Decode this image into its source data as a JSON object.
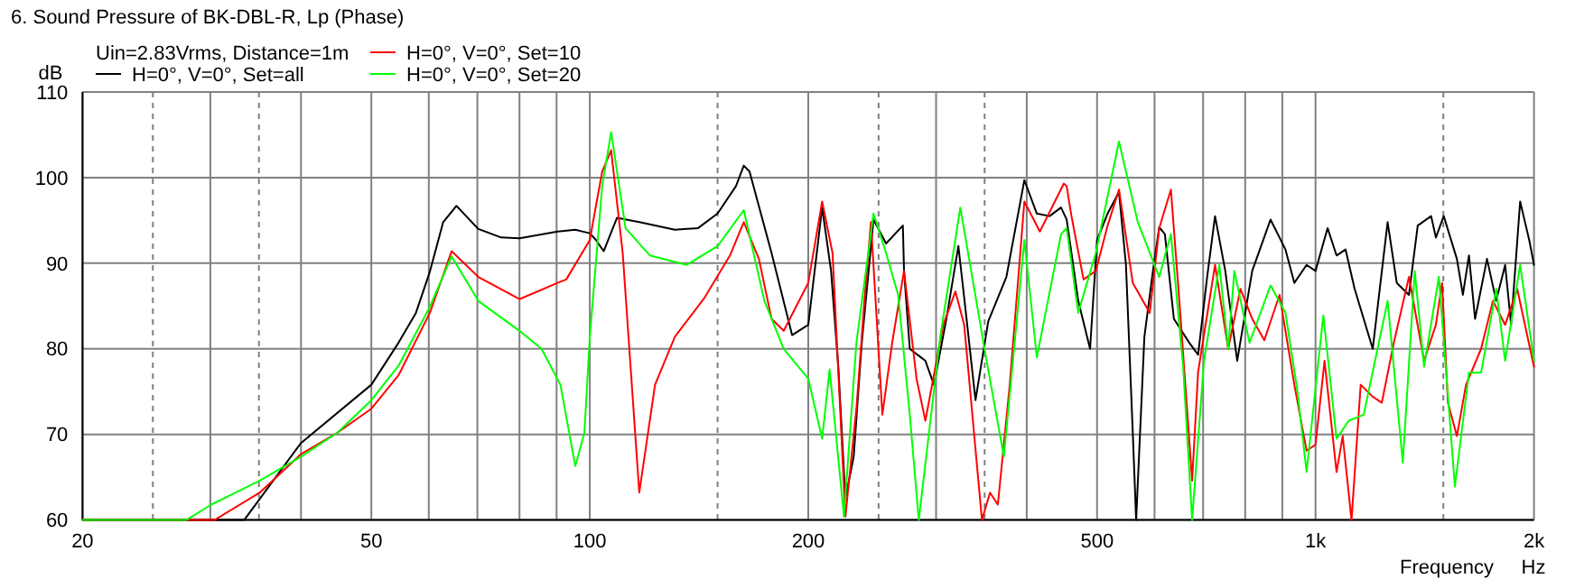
{
  "chart_data": {
    "type": "line",
    "title": "6. Sound Pressure of BK-DBL-R, Lp (Phase)",
    "subtitle": "Uin=2.83Vrms, Distance=1m",
    "xlabel": "Frequency",
    "ylabel": "dB",
    "annotations": [
      "Hz"
    ],
    "log": "x",
    "xlim": [
      20,
      2000
    ],
    "ylim": [
      60,
      110
    ],
    "xticks": [
      20,
      {
        "value": 30,
        "label": null
      },
      {
        "value": 40,
        "label": null
      },
      50,
      {
        "value": 60,
        "label": null
      },
      {
        "value": 70,
        "label": null
      },
      {
        "value": 80,
        "label": null
      },
      {
        "value": 90,
        "label": null
      },
      100,
      200,
      {
        "value": 300,
        "label": null
      },
      {
        "value": 400,
        "label": null
      },
      500,
      {
        "value": 600,
        "label": null
      },
      {
        "value": 700,
        "label": null
      },
      {
        "value": 800,
        "label": null
      },
      {
        "value": 900,
        "label": null
      },
      {
        "value": 1000,
        "label": "1k"
      },
      {
        "value": 2000,
        "label": "2k"
      }
    ],
    "yticks": [
      60,
      70,
      80,
      90,
      100,
      110
    ],
    "grid": true,
    "legend": "top",
    "line_style": "solid",
    "marker": "none",
    "ref_lines": [
      {
        "axis": "x",
        "value": 25,
        "color": "#808080",
        "line_style": "dashed"
      },
      {
        "axis": "x",
        "value": 35,
        "color": "#808080",
        "line_style": "dashed"
      },
      {
        "axis": "x",
        "value": 150,
        "color": "#808080",
        "line_style": "dashed"
      },
      {
        "axis": "x",
        "value": 250,
        "color": "#808080",
        "line_style": "dashed"
      },
      {
        "axis": "x",
        "value": 350,
        "color": "#808080",
        "line_style": "dashed"
      },
      {
        "axis": "x",
        "value": 1500,
        "color": "#808080",
        "line_style": "dashed"
      }
    ],
    "series": [
      {
        "name": "H=0°, V=0°, Set=all",
        "color": "#000000",
        "x": [
          20,
          33.4,
          40,
          50,
          54.5,
          57.6,
          60.2,
          62.8,
          65.5,
          70.2,
          75.5,
          80,
          90.3,
          95.5,
          100,
          102,
          104.5,
          109,
          117,
          131,
          141,
          150,
          159,
          163,
          166,
          178,
          190,
          200,
          209,
          215,
          220,
          225,
          231,
          237,
          246,
          256,
          270,
          271,
          276,
          290,
          298,
          310,
          322,
          328,
          340,
          354,
          375,
          397,
          413,
          430,
          446,
          454,
          461,
          471,
          489,
          500,
          517,
          536,
          548,
          560,
          566,
          581,
          597,
          609,
          620,
          638,
          670,
          689,
          709,
          727,
          751,
          780,
          818,
          867,
          909,
          935,
          972,
          1000,
          1039,
          1069,
          1100,
          1132,
          1199,
          1257,
          1294,
          1345,
          1383,
          1443,
          1465,
          1502,
          1566,
          1596,
          1627,
          1659,
          1723,
          1774,
          1825,
          1860,
          1914,
          1970,
          2000
        ],
        "values": [
          60,
          60,
          69,
          75.8,
          80.7,
          84.2,
          89,
          94.8,
          96.7,
          94,
          93,
          92.9,
          93.7,
          93.9,
          93.5,
          92.7,
          91.4,
          95.3,
          94.8,
          93.9,
          94.1,
          95.8,
          99,
          101.4,
          100.7,
          91.2,
          81.6,
          82.8,
          96.5,
          89.1,
          77.9,
          62.5,
          67.4,
          80.7,
          95.1,
          92.3,
          94.4,
          89.1,
          80,
          78.6,
          75.8,
          83.5,
          92,
          86,
          74,
          83.2,
          88.4,
          99.7,
          95.8,
          95.5,
          96.5,
          95.1,
          91.2,
          85.6,
          80,
          92.7,
          95.8,
          98.3,
          89.8,
          70.2,
          60,
          81.4,
          89.1,
          94.2,
          93.4,
          83.5,
          80.7,
          79.3,
          88.4,
          95.5,
          89.1,
          78.6,
          89.1,
          95.1,
          91.6,
          87.7,
          89.8,
          89.1,
          94.1,
          90.9,
          91.6,
          87,
          80,
          94.8,
          87.7,
          86.3,
          94.4,
          95.5,
          93,
          95.5,
          90.5,
          86.3,
          90.9,
          83.5,
          90.5,
          85.6,
          89.8,
          82.8,
          97.2,
          92.7,
          89.8
        ]
      },
      {
        "name": "H=0°, V=0°, Set=10",
        "color": "#ff0000",
        "x": [
          20,
          30.4,
          35.1,
          40,
          44.9,
          50,
          54.5,
          60.2,
          64.5,
          70.2,
          80,
          90.3,
          92.8,
          100,
          104,
          107,
          111,
          117,
          123,
          131,
          144,
          156,
          163,
          171,
          178,
          185,
          200,
          209,
          216,
          225,
          233,
          239,
          244,
          253,
          261,
          271,
          282,
          290,
          307,
          319,
          328,
          347,
          356,
          365,
          379,
          397,
          417,
          450,
          454,
          461,
          479,
          498,
          517,
          536,
          560,
          591,
          609,
          632,
          651,
          676,
          689,
          727,
          758,
          788,
          818,
          850,
          892,
          935,
          972,
          1000,
          1029,
          1069,
          1090,
          1121,
          1154,
          1199,
          1234,
          1282,
          1345,
          1411,
          1465,
          1494,
          1522,
          1566,
          1612,
          1691,
          1756,
          1825,
          1896,
          2000
        ],
        "values": [
          60,
          60,
          63.2,
          67.7,
          70.2,
          73,
          76.9,
          84.2,
          91.4,
          88.4,
          85.8,
          87.7,
          88.1,
          92.7,
          100.7,
          103.2,
          91.2,
          63.2,
          75.8,
          81.4,
          86,
          90.9,
          94.8,
          90.5,
          83.5,
          82.1,
          87.7,
          97.2,
          91.2,
          60.4,
          73,
          85.6,
          94.8,
          72.3,
          80.7,
          89.1,
          76.5,
          71.6,
          82.8,
          86.7,
          82.8,
          60,
          63.2,
          61.8,
          75.8,
          97.2,
          93.7,
          99.3,
          99,
          95.5,
          88.1,
          89.1,
          94.4,
          98.6,
          87.7,
          84.2,
          94.1,
          98.6,
          84.2,
          64.6,
          77.3,
          89.8,
          80,
          87,
          83.5,
          81,
          86.3,
          75.8,
          68.1,
          68.8,
          78.6,
          65.6,
          69.8,
          60,
          75.8,
          74.4,
          73.7,
          80.7,
          88.4,
          78.6,
          82.8,
          87.7,
          73.7,
          69.8,
          75.8,
          80,
          85.6,
          82.8,
          87,
          77.9
        ]
      },
      {
        "name": "H=0°, V=0°, Set=20",
        "color": "#00ff00",
        "x": [
          20,
          27.8,
          30.1,
          35.1,
          40,
          44.9,
          50,
          54.5,
          60.2,
          64.5,
          70.2,
          80,
          85.8,
          91.1,
          95.5,
          98.3,
          100,
          104,
          107,
          112,
          121,
          136,
          150,
          163,
          174,
          185,
          200,
          209,
          214,
          224,
          233,
          246,
          256,
          266,
          276,
          284,
          304,
          324,
          351,
          372,
          397,
          413,
          446,
          454,
          471,
          498,
          536,
          569,
          609,
          632,
          657,
          676,
          702,
          737,
          758,
          773,
          811,
          867,
          909,
          944,
          972,
          1025,
          1069,
          1111,
          1165,
          1257,
          1319,
          1370,
          1411,
          1479,
          1556,
          1627,
          1691,
          1774,
          1825,
          1914,
          2000
        ],
        "values": [
          60,
          60,
          61.8,
          64.6,
          67.4,
          70.2,
          74,
          78,
          84.9,
          90.8,
          85.6,
          82.1,
          80,
          75.8,
          66.3,
          70.2,
          81.4,
          99,
          105.3,
          94.1,
          90.9,
          89.8,
          92,
          96.2,
          85.6,
          80,
          76.5,
          69.5,
          77.6,
          60.4,
          80.7,
          95.8,
          91.2,
          86.3,
          72.3,
          60,
          81.4,
          96.5,
          79.3,
          67.4,
          92.7,
          79,
          93.4,
          94.1,
          84.2,
          91.2,
          104.2,
          94.8,
          88.4,
          93.4,
          77.9,
          60,
          78.6,
          89.8,
          80,
          89.1,
          80.7,
          87.4,
          84.2,
          75.1,
          65.6,
          83.9,
          69.5,
          71.6,
          72.3,
          85.6,
          66.7,
          89.1,
          77.9,
          88.4,
          63.9,
          77.2,
          77.2,
          87,
          78.6,
          89.8,
          78.6
        ]
      }
    ]
  }
}
